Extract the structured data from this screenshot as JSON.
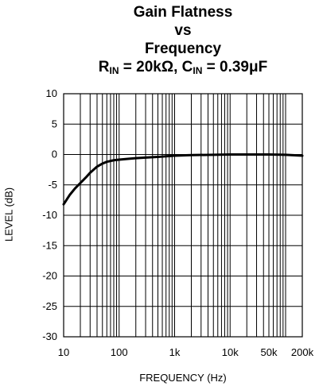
{
  "chart_data": {
    "type": "line",
    "title_lines": [
      "Gain Flatness",
      "vs",
      "Frequency"
    ],
    "title_formula": [
      {
        "text": "R",
        "sub": "IN"
      },
      {
        "text": " = 20kΩ, C",
        "sub": "IN"
      },
      {
        "text": " = 0.39μF",
        "sub": ""
      }
    ],
    "xlabel": "FREQUENCY (Hz)",
    "ylabel": "LEVEL (dB)",
    "xscale": "log",
    "xlim": [
      10,
      200000
    ],
    "ylim": [
      -30,
      10
    ],
    "grid": true,
    "x_ticks": [
      {
        "value": 10,
        "label": "10"
      },
      {
        "value": 100,
        "label": "100"
      },
      {
        "value": 1000,
        "label": "1k"
      },
      {
        "value": 10000,
        "label": "10k"
      },
      {
        "value": 50000,
        "label": "50k"
      },
      {
        "value": 200000,
        "label": "200k"
      }
    ],
    "y_ticks": [
      {
        "value": 10,
        "label": "10"
      },
      {
        "value": 5,
        "label": "5"
      },
      {
        "value": 0,
        "label": "0"
      },
      {
        "value": -5,
        "label": "-5"
      },
      {
        "value": -10,
        "label": "-10"
      },
      {
        "value": -15,
        "label": "-15"
      },
      {
        "value": -20,
        "label": "-20"
      },
      {
        "value": -25,
        "label": "-25"
      },
      {
        "value": -30,
        "label": "-30"
      }
    ],
    "series": [
      {
        "color": "#000000",
        "x": [
          10,
          13,
          16,
          20,
          25,
          30,
          40,
          50,
          60,
          80,
          100,
          150,
          200,
          300,
          500,
          700,
          1000,
          2000,
          5000,
          10000,
          20000,
          50000,
          100000,
          200000
        ],
        "y": [
          -8.2,
          -6.6,
          -5.6,
          -4.7,
          -3.8,
          -3.0,
          -2.0,
          -1.5,
          -1.2,
          -0.95,
          -0.85,
          -0.7,
          -0.6,
          -0.5,
          -0.4,
          -0.3,
          -0.2,
          -0.1,
          -0.05,
          0,
          0,
          0,
          -0.05,
          -0.2
        ]
      }
    ]
  }
}
